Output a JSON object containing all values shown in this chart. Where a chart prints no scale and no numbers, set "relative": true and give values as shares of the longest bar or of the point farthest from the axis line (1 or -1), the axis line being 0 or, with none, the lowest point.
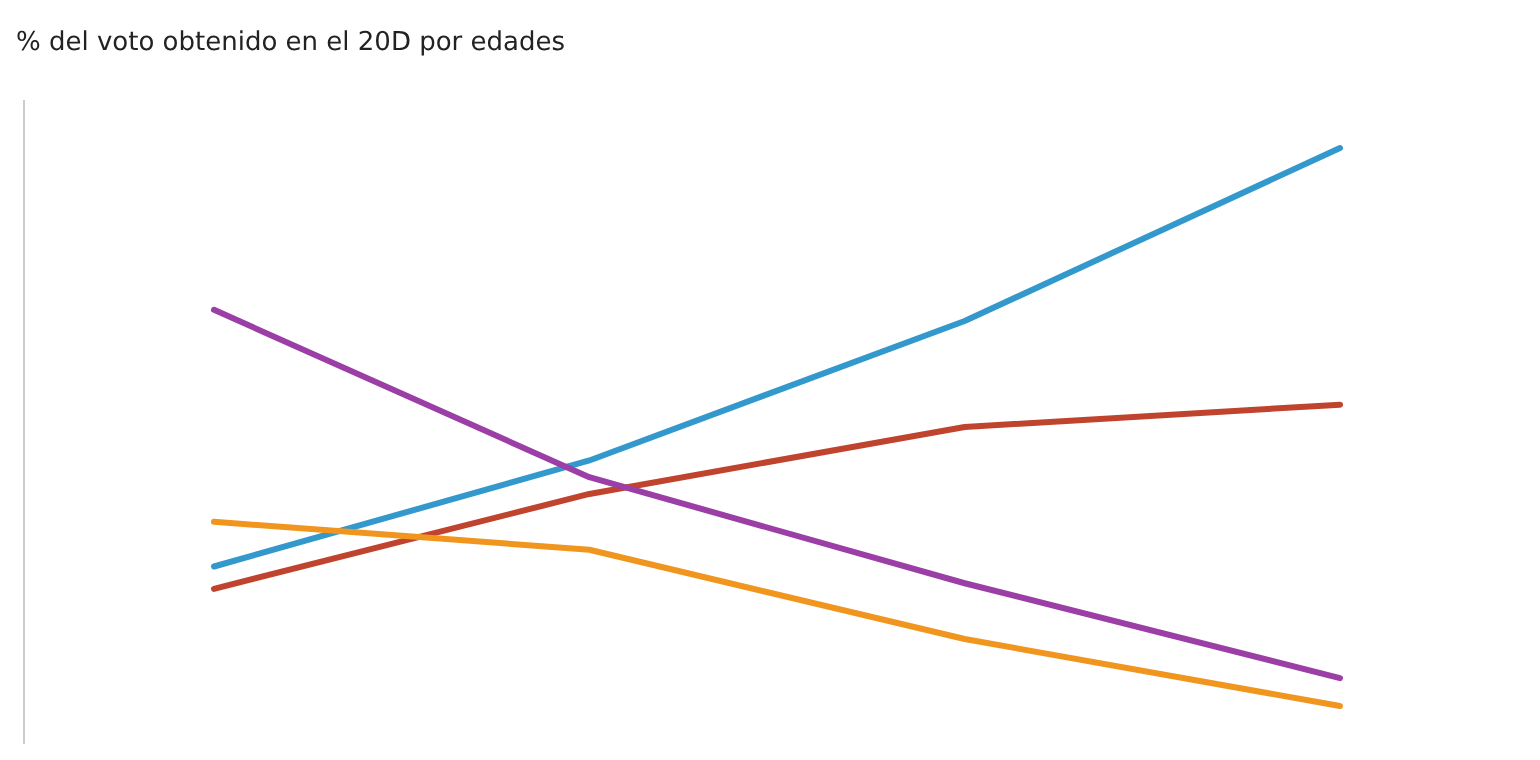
{
  "chart_data": {
    "type": "line",
    "title": "% del voto obtenido en el 20D por edades",
    "relative": true,
    "categories": [
      null,
      null,
      null,
      null
    ],
    "series": [
      {
        "color": "#3399cc",
        "values": [
          0.25,
          0.44,
          0.69,
          1
        ]
      },
      {
        "color": "#c0432e",
        "values": [
          0.21,
          0.38,
          0.5,
          0.54
        ]
      },
      {
        "color": "#9b3fa6",
        "values": [
          0.71,
          0.41,
          0.22,
          0.05
        ]
      },
      {
        "color": "#f0961e",
        "values": [
          0.33,
          0.28,
          0.12,
          0
        ]
      }
    ]
  }
}
